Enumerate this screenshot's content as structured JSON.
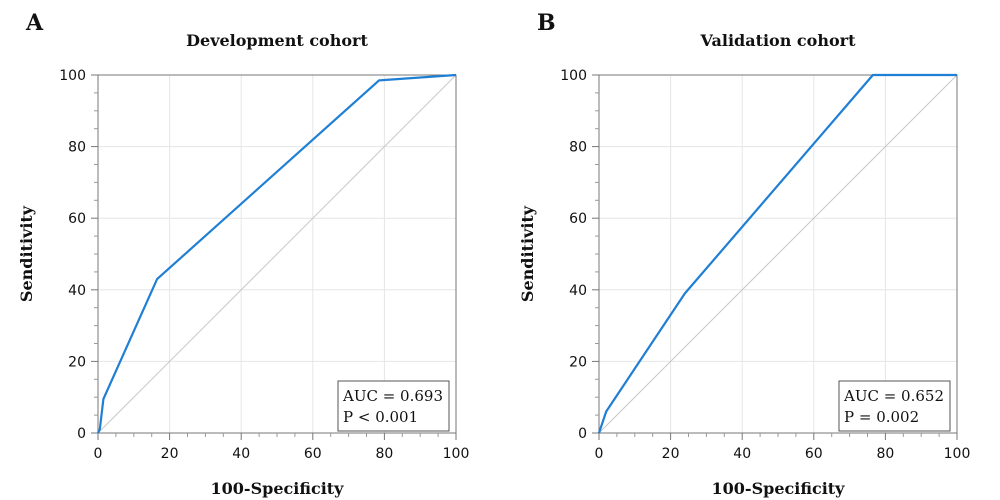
{
  "colors": {
    "roc": "#1f7fd4",
    "reference": "#c8c8c8"
  },
  "chart_data": [
    {
      "type": "line",
      "panel": "A",
      "title": "Development cohort",
      "xlabel": "100-Specificity",
      "ylabel": "Senditivity",
      "xlim": [
        0,
        100
      ],
      "ylim": [
        0,
        100
      ],
      "xticks": [
        0,
        20,
        40,
        60,
        80,
        100
      ],
      "yticks": [
        0,
        20,
        40,
        60,
        80,
        100
      ],
      "grid": true,
      "reference_line": [
        [
          0,
          0
        ],
        [
          100,
          100
        ]
      ],
      "series": [
        {
          "x": [
            0,
            0.5,
            1.5,
            16.5,
            78.5,
            100
          ],
          "y": [
            0,
            1,
            9.5,
            43,
            98.5,
            100
          ]
        }
      ],
      "annotation": {
        "lines": [
          "AUC = 0.693",
          "P < 0.001"
        ],
        "position": "bottom-right"
      }
    },
    {
      "type": "line",
      "panel": "B",
      "title": "Validation cohort",
      "xlabel": "100-Specificity",
      "ylabel": "Senditivity",
      "xlim": [
        0,
        100
      ],
      "ylim": [
        0,
        100
      ],
      "xticks": [
        0,
        20,
        40,
        60,
        80,
        100
      ],
      "yticks": [
        0,
        20,
        40,
        60,
        80,
        100
      ],
      "grid": true,
      "reference_line": [
        [
          0,
          0
        ],
        [
          100,
          100
        ]
      ],
      "series": [
        {
          "x": [
            0,
            2,
            24,
            76.5,
            100
          ],
          "y": [
            0,
            6,
            39,
            100,
            100
          ]
        }
      ],
      "annotation": {
        "lines": [
          "AUC = 0.652",
          "P = 0.002"
        ],
        "position": "bottom-right"
      }
    }
  ]
}
